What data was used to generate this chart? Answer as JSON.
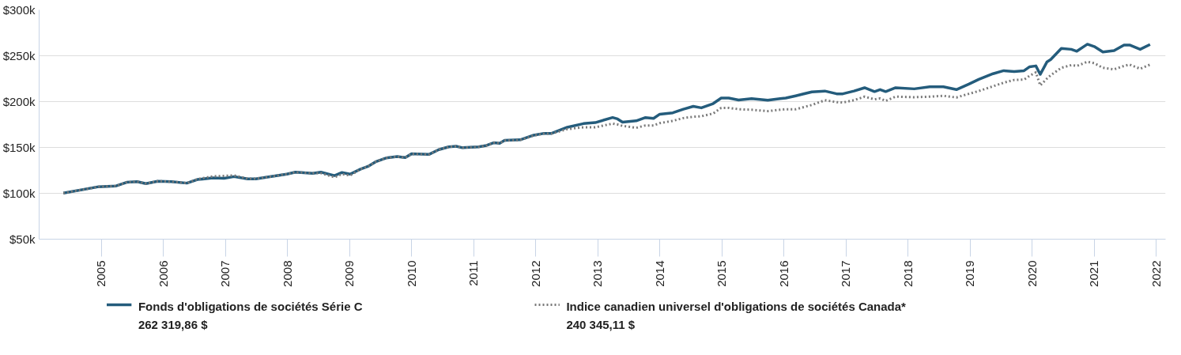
{
  "chart_data": {
    "type": "line",
    "x": [
      2004.39,
      2004.96,
      2005.24,
      2005.41,
      2005.58,
      2005.72,
      2005.91,
      2006.13,
      2006.38,
      2006.55,
      2006.8,
      2006.98,
      2007.14,
      2007.36,
      2007.49,
      2007.78,
      2007.99,
      2008.13,
      2008.41,
      2008.54,
      2008.76,
      2008.88,
      2009.01,
      2009.18,
      2009.3,
      2009.43,
      2009.59,
      2009.77,
      2009.9,
      2010.0,
      2010.28,
      2010.44,
      2010.6,
      2010.72,
      2010.82,
      2011.08,
      2011.21,
      2011.33,
      2011.42,
      2011.5,
      2011.75,
      2011.97,
      2012.12,
      2012.25,
      2012.51,
      2012.77,
      2012.96,
      2013.24,
      2013.32,
      2013.4,
      2013.62,
      2013.77,
      2013.9,
      2014.0,
      2014.21,
      2014.38,
      2014.54,
      2014.67,
      2014.86,
      2014.99,
      2015.11,
      2015.27,
      2015.48,
      2015.74,
      2015.94,
      2016.03,
      2016.19,
      2016.45,
      2016.66,
      2016.85,
      2016.95,
      2017.13,
      2017.3,
      2017.46,
      2017.55,
      2017.64,
      2017.8,
      2018.1,
      2018.35,
      2018.57,
      2018.78,
      2018.98,
      2019.14,
      2019.37,
      2019.54,
      2019.71,
      2019.87,
      2019.96,
      2020.06,
      2020.13,
      2020.24,
      2020.3,
      2020.47,
      2020.63,
      2020.72,
      2020.89,
      2021.0,
      2021.14,
      2021.32,
      2021.48,
      2021.57,
      2021.74,
      2021.9
    ],
    "series": [
      {
        "name": "Fonds d'obligations de sociétés Série C\n262 319,86 $",
        "color": "#245c7c",
        "line_style": "solid",
        "values": [
          100.2,
          107.2,
          108,
          112,
          112.7,
          110.5,
          113.2,
          112.7,
          111.1,
          115,
          116.9,
          116.3,
          118.2,
          115.7,
          115.7,
          118.7,
          120.9,
          123,
          121.8,
          123,
          119.3,
          122.7,
          120.9,
          126.4,
          129.4,
          134.6,
          138.5,
          140,
          139,
          143,
          142.4,
          147.6,
          150.6,
          151.3,
          149.7,
          150.6,
          152.2,
          155.2,
          154.6,
          157.7,
          158.3,
          163.4,
          165.2,
          165.2,
          172,
          176,
          177.1,
          182.6,
          181.1,
          177.6,
          179,
          182.6,
          181.7,
          186.3,
          187.8,
          191.7,
          194.8,
          193.2,
          197.8,
          203.9,
          203.9,
          201.7,
          203.3,
          201.5,
          203.3,
          203.9,
          206.3,
          210.6,
          211.5,
          208.5,
          208.5,
          211.5,
          215.1,
          210.9,
          213.1,
          210.9,
          215.1,
          213.9,
          216.1,
          216.1,
          213.1,
          219.1,
          224.3,
          230.4,
          233.7,
          232.8,
          233.7,
          238,
          238.9,
          229.7,
          243.4,
          245.9,
          257.9,
          257,
          254.9,
          262.6,
          260.1,
          254.1,
          255.6,
          261.7,
          261.7,
          257,
          262.3
        ]
      },
      {
        "name": "Indice canadien universel d'obligations de sociétés Canada*\n240 345,11 $",
        "color": "#7a7a7a",
        "line_style": "dotted",
        "values": [
          100.2,
          107.2,
          108,
          112,
          112.7,
          110.5,
          113.2,
          112.7,
          111.1,
          115.5,
          118.5,
          119,
          119.5,
          116,
          116,
          118.7,
          120.9,
          123,
          122,
          122,
          117.5,
          121,
          119.5,
          126.4,
          129.4,
          134.6,
          138.5,
          140,
          139,
          143,
          142.4,
          147.6,
          150.6,
          151.3,
          149.7,
          150.6,
          152.2,
          155.2,
          154.6,
          157.5,
          158,
          163,
          165,
          165,
          170,
          172,
          172,
          176,
          175,
          173.5,
          171.4,
          174,
          174,
          176.5,
          179,
          182,
          183.5,
          184,
          187,
          193.2,
          193.2,
          191.7,
          191.1,
          189.6,
          191.1,
          191.7,
          191.7,
          196.3,
          201.5,
          199.4,
          199,
          201.5,
          205.4,
          202.4,
          203.5,
          200.8,
          205.4,
          204.8,
          205.4,
          206.3,
          204.5,
          208.5,
          211.5,
          216.7,
          220.6,
          223.6,
          224,
          228.2,
          231.9,
          217.6,
          225.2,
          228.8,
          236.8,
          239.8,
          238.9,
          243.4,
          241.9,
          236.8,
          235.2,
          238.9,
          240.4,
          235.8,
          240.3
        ]
      }
    ],
    "xlim": [
      2004.0,
      2022.15
    ],
    "xticks": [
      2005,
      2006,
      2007,
      2008,
      2009,
      2010,
      2011,
      2012,
      2013,
      2014,
      2015,
      2016,
      2017,
      2018,
      2019,
      2020,
      2021,
      2022
    ],
    "ylim": [
      50,
      300
    ],
    "yticks": [
      {
        "value": 50,
        "label": "$50k"
      },
      {
        "value": 100,
        "label": "$100k"
      },
      {
        "value": 150,
        "label": "$150k"
      },
      {
        "value": 200,
        "label": "$200k"
      },
      {
        "value": 250,
        "label": "$250k"
      },
      {
        "value": 300,
        "label": "$300k"
      }
    ],
    "grid": "y",
    "legend": "bottom",
    "marker": "none"
  }
}
